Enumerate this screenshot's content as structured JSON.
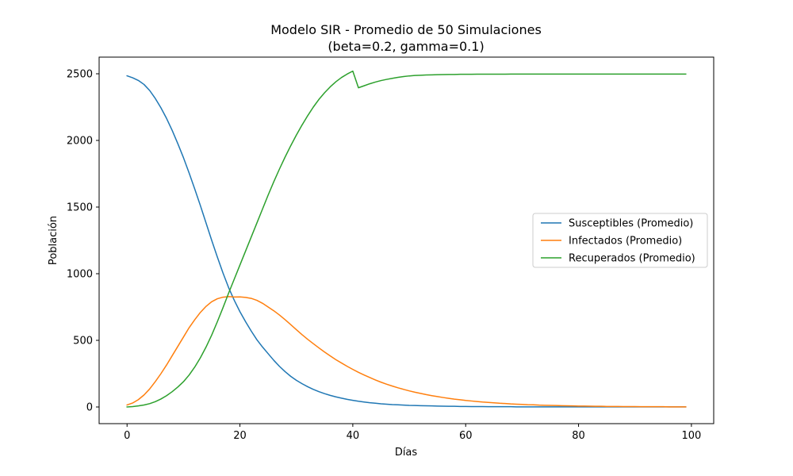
{
  "chart_data": {
    "type": "line",
    "title": "Modelo SIR - Promedio de 50 Simulaciones",
    "subtitle": "(beta=0.2, gamma=0.1)",
    "xlabel": "Días",
    "ylabel": "Población",
    "xlim": [
      -4.95,
      103.95
    ],
    "ylim": [
      -125,
      2625
    ],
    "xticks": [
      0,
      20,
      40,
      60,
      80,
      100
    ],
    "yticks": [
      0,
      500,
      1000,
      1500,
      2000,
      2500
    ],
    "grid": false,
    "legend_position": "center-right",
    "x": [
      0,
      1,
      2,
      3,
      4,
      5,
      6,
      7,
      8,
      9,
      10,
      11,
      12,
      13,
      14,
      15,
      16,
      17,
      18,
      19,
      20,
      21,
      22,
      23,
      24,
      25,
      26,
      27,
      28,
      29,
      30,
      31,
      32,
      33,
      34,
      35,
      36,
      37,
      38,
      39,
      40,
      41,
      42,
      43,
      44,
      45,
      46,
      47,
      48,
      49,
      50,
      51,
      52,
      53,
      54,
      55,
      56,
      57,
      58,
      59,
      60,
      61,
      62,
      63,
      64,
      65,
      66,
      67,
      68,
      69,
      70,
      71,
      72,
      73,
      74,
      75,
      76,
      77,
      78,
      79,
      80,
      81,
      82,
      83,
      84,
      85,
      86,
      87,
      88,
      89,
      90,
      91,
      92,
      93,
      94,
      95,
      96,
      97,
      98,
      99
    ],
    "series": [
      {
        "name": "Susceptibles (Promedio)",
        "color": "#1f77b4",
        "values": [
          2485,
          2470,
          2450,
          2420,
          2375,
          2315,
          2245,
          2165,
          2075,
          1975,
          1870,
          1755,
          1635,
          1510,
          1380,
          1250,
          1125,
          1005,
          895,
          800,
          715,
          640,
          570,
          505,
          450,
          400,
          350,
          305,
          265,
          230,
          200,
          175,
          152,
          132,
          115,
          100,
          87,
          76,
          66,
          57,
          50,
          43,
          37,
          32,
          28,
          24,
          21,
          18,
          16,
          14,
          12,
          11,
          10,
          9,
          8,
          7,
          6,
          5,
          5,
          4,
          4,
          3,
          3,
          3,
          2,
          2,
          2,
          2,
          2,
          1,
          1,
          1,
          1,
          1,
          1,
          1,
          1,
          1,
          1,
          1,
          1,
          1,
          1,
          1,
          1,
          1,
          1,
          1,
          1,
          1,
          1,
          1,
          1,
          1,
          1,
          1,
          1,
          1,
          1,
          1
        ]
      },
      {
        "name": "Infectados (Promedio)",
        "color": "#ff7f0e",
        "values": [
          15,
          30,
          55,
          90,
          135,
          190,
          250,
          315,
          385,
          455,
          525,
          595,
          655,
          710,
          755,
          790,
          812,
          824,
          828,
          825,
          826,
          822,
          815,
          800,
          778,
          750,
          722,
          690,
          655,
          618,
          580,
          543,
          508,
          475,
          443,
          412,
          383,
          355,
          330,
          305,
          282,
          260,
          240,
          221,
          203,
          186,
          171,
          157,
          144,
          132,
          121,
          111,
          102,
          93,
          85,
          78,
          71,
          65,
          59,
          54,
          49,
          45,
          41,
          37,
          34,
          31,
          28,
          26,
          23,
          21,
          19,
          17,
          16,
          14,
          13,
          12,
          11,
          10,
          9,
          8,
          7,
          7,
          6,
          5,
          5,
          4,
          4,
          4,
          3,
          3,
          3,
          2,
          2,
          2,
          2,
          2,
          1,
          1,
          1,
          1
        ]
      },
      {
        "name": "Recuperados (Promedio)",
        "color": "#2ca02c",
        "values": [
          0,
          3,
          8,
          15,
          25,
          40,
          60,
          85,
          115,
          150,
          190,
          240,
          300,
          370,
          450,
          540,
          640,
          745,
          855,
          960,
          1065,
          1170,
          1275,
          1380,
          1485,
          1590,
          1690,
          1785,
          1875,
          1960,
          2040,
          2115,
          2185,
          2250,
          2308,
          2358,
          2402,
          2440,
          2472,
          2498,
          2520,
          2395,
          2410,
          2425,
          2438,
          2449,
          2458,
          2466,
          2473,
          2479,
          2484,
          2487,
          2489,
          2491,
          2492,
          2493,
          2494,
          2495,
          2495,
          2496,
          2496,
          2496,
          2497,
          2497,
          2497,
          2497,
          2497,
          2497,
          2498,
          2498,
          2498,
          2498,
          2498,
          2498,
          2498,
          2498,
          2498,
          2498,
          2498,
          2498,
          2498,
          2498,
          2498,
          2498,
          2498,
          2498,
          2498,
          2498,
          2498,
          2498,
          2498,
          2498,
          2498,
          2498,
          2498,
          2498,
          2498,
          2498,
          2498,
          2498
        ]
      }
    ]
  }
}
